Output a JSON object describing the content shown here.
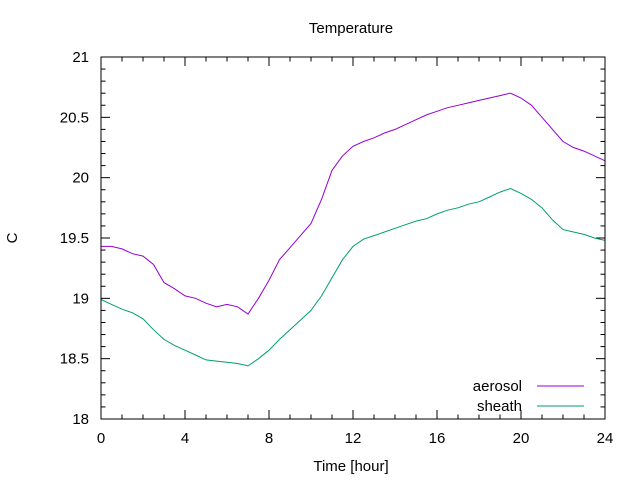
{
  "chart_data": {
    "type": "line",
    "title": "Temperature",
    "xlabel": "Time [hour]",
    "ylabel": "C",
    "xlim": [
      0,
      24
    ],
    "ylim": [
      18,
      21
    ],
    "xticks": [
      "0",
      "4",
      "8",
      "12",
      "16",
      "20",
      "24"
    ],
    "yticks": [
      "18",
      "18.5",
      "19",
      "19.5",
      "20",
      "20.5",
      "21"
    ],
    "grid": false,
    "legend_position": "bottom-right",
    "x": [
      0,
      0.5,
      1,
      1.5,
      2,
      2.5,
      3,
      3.5,
      4,
      4.5,
      5,
      5.5,
      6,
      6.5,
      7,
      7.5,
      8,
      8.5,
      9,
      9.5,
      10,
      10.5,
      11,
      11.5,
      12,
      12.5,
      13,
      13.5,
      14,
      14.5,
      15,
      15.5,
      16,
      16.5,
      17,
      17.5,
      18,
      18.5,
      19,
      19.5,
      20,
      20.5,
      21,
      21.5,
      22,
      22.5,
      23,
      23.5,
      24
    ],
    "series": [
      {
        "name": "aerosol",
        "color": "#9400d3",
        "values": [
          19.43,
          19.43,
          19.41,
          19.37,
          19.35,
          19.28,
          19.13,
          19.08,
          19.02,
          19.0,
          18.96,
          18.93,
          18.95,
          18.93,
          18.87,
          19.0,
          19.15,
          19.32,
          19.42,
          19.52,
          19.62,
          19.82,
          20.06,
          20.18,
          20.26,
          20.3,
          20.33,
          20.37,
          20.4,
          20.44,
          20.48,
          20.52,
          20.55,
          20.58,
          20.6,
          20.62,
          20.64,
          20.66,
          20.68,
          20.7,
          20.66,
          20.6,
          20.5,
          20.4,
          20.3,
          20.25,
          20.22,
          20.18,
          20.14
        ]
      },
      {
        "name": "sheath",
        "color": "#009e73",
        "values": [
          18.99,
          18.95,
          18.91,
          18.88,
          18.83,
          18.74,
          18.66,
          18.61,
          18.57,
          18.53,
          18.49,
          18.48,
          18.47,
          18.46,
          18.44,
          18.5,
          18.57,
          18.66,
          18.74,
          18.82,
          18.9,
          19.02,
          19.17,
          19.32,
          19.43,
          19.49,
          19.52,
          19.55,
          19.58,
          19.61,
          19.64,
          19.66,
          19.7,
          19.73,
          19.75,
          19.78,
          19.8,
          19.84,
          19.88,
          19.91,
          19.87,
          19.82,
          19.75,
          19.65,
          19.57,
          19.55,
          19.53,
          19.5,
          19.48
        ]
      }
    ]
  }
}
